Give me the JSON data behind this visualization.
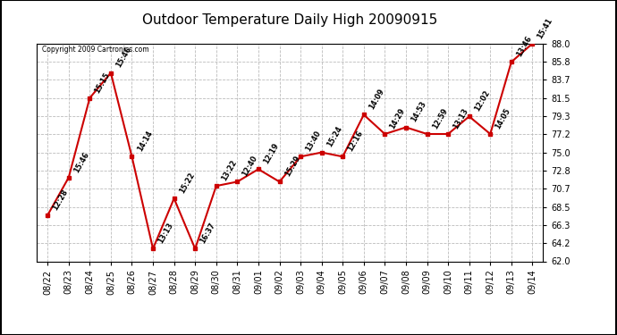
{
  "title": "Outdoor Temperature Daily High 20090915",
  "copyright": "Copyright 2009 Cartronics.com",
  "dates": [
    "08/22",
    "08/23",
    "08/24",
    "08/25",
    "08/26",
    "08/27",
    "08/28",
    "08/29",
    "08/30",
    "08/31",
    "09/01",
    "09/02",
    "09/03",
    "09/04",
    "09/05",
    "09/06",
    "09/07",
    "09/08",
    "09/09",
    "09/10",
    "09/11",
    "09/12",
    "09/13",
    "09/14"
  ],
  "values": [
    67.5,
    72.0,
    81.5,
    84.5,
    74.5,
    63.5,
    69.5,
    63.5,
    71.0,
    71.5,
    73.0,
    71.5,
    74.5,
    75.0,
    74.5,
    79.5,
    77.2,
    78.0,
    77.2,
    77.2,
    79.3,
    77.2,
    85.8,
    88.0
  ],
  "annotations": [
    "12:28",
    "15:46",
    "15:15",
    "15:46",
    "14:14",
    "13:13",
    "15:22",
    "16:37",
    "13:22",
    "12:40",
    "12:19",
    "15:29",
    "13:40",
    "15:24",
    "12:16",
    "14:09",
    "14:29",
    "14:53",
    "12:59",
    "13:13",
    "12:02",
    "14:05",
    "13:46",
    "15:41"
  ],
  "line_color": "#cc0000",
  "marker_color": "#cc0000",
  "bg_color": "#ffffff",
  "grid_color": "#bbbbbb",
  "ylim_min": 62.0,
  "ylim_max": 88.0,
  "yticks": [
    62.0,
    64.2,
    66.3,
    68.5,
    70.7,
    72.8,
    75.0,
    77.2,
    79.3,
    81.5,
    83.7,
    85.8,
    88.0
  ],
  "title_fontsize": 11,
  "annotation_fontsize": 5.8,
  "tick_fontsize": 7,
  "border_color": "#000000"
}
